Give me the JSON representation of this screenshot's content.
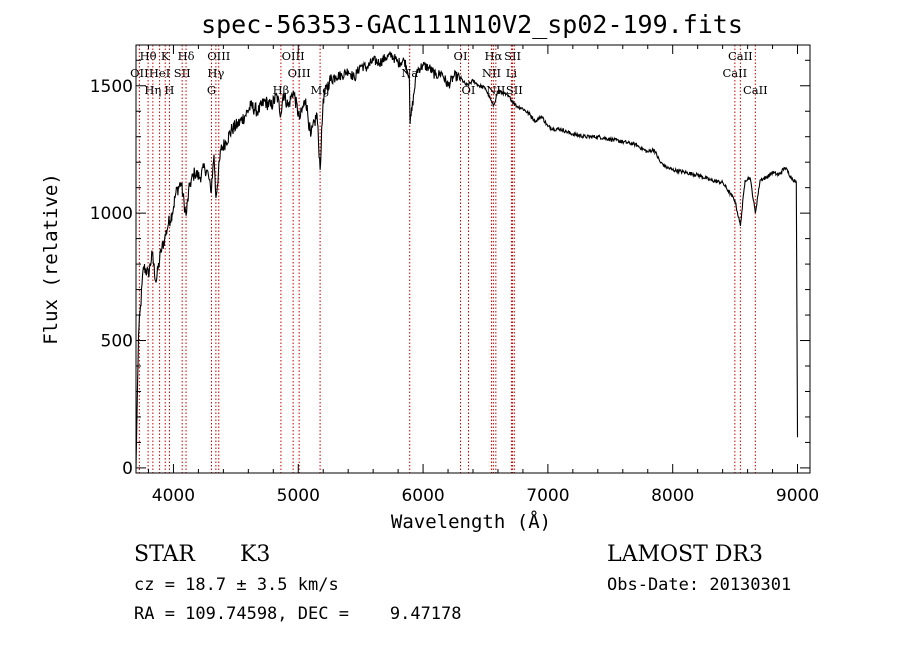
{
  "chart_data": {
    "type": "line",
    "title": "spec-56353-GAC111N10V2_sp02-199.fits",
    "xlabel": "Wavelength (Å)",
    "ylabel": "Flux (relative)",
    "xlim": [
      3700,
      9100
    ],
    "ylim": [
      -20,
      1660
    ],
    "x_ticks": [
      4000,
      5000,
      6000,
      7000,
      8000,
      9000
    ],
    "x_tick_labels": [
      "4000",
      "5000",
      "6000",
      "7000",
      "8000",
      "9000"
    ],
    "y_ticks": [
      0,
      500,
      1000,
      1500
    ],
    "y_tick_labels": [
      "0",
      "500",
      "1000",
      "1500"
    ],
    "series": [
      {
        "name": "spectrum",
        "x": [
          3700,
          3720,
          3760,
          3800,
          3830,
          3860,
          3900,
          3930,
          3960,
          3990,
          4020,
          4060,
          4101,
          4130,
          4170,
          4210,
          4250,
          4280,
          4300,
          4325,
          4340,
          4380,
          4420,
          4470,
          4520,
          4570,
          4620,
          4680,
          4730,
          4780,
          4830,
          4861,
          4880,
          4920,
          4960,
          5010,
          5060,
          5100,
          5150,
          5175,
          5200,
          5250,
          5300,
          5350,
          5400,
          5450,
          5500,
          5550,
          5600,
          5650,
          5700,
          5750,
          5800,
          5850,
          5890,
          5896,
          5950,
          6000,
          6050,
          6100,
          6150,
          6200,
          6250,
          6300,
          6350,
          6400,
          6450,
          6500,
          6563,
          6600,
          6650,
          6700,
          6750,
          6800,
          6850,
          6900,
          6950,
          7000,
          7050,
          7100,
          7150,
          7200,
          7300,
          7400,
          7500,
          7600,
          7700,
          7800,
          7850,
          7900,
          7950,
          8000,
          8100,
          8200,
          8300,
          8400,
          8498,
          8542,
          8580,
          8620,
          8662,
          8700,
          8750,
          8800,
          8850,
          8900,
          8950,
          8990,
          9000
        ],
        "values": [
          0,
          520,
          790,
          760,
          840,
          730,
          850,
          900,
          960,
          1000,
          1080,
          1120,
          990,
          1110,
          1160,
          1140,
          1180,
          1150,
          1080,
          1230,
          1060,
          1250,
          1280,
          1330,
          1350,
          1380,
          1420,
          1400,
          1440,
          1420,
          1460,
          1390,
          1470,
          1420,
          1480,
          1370,
          1450,
          1300,
          1390,
          1170,
          1450,
          1520,
          1540,
          1540,
          1560,
          1530,
          1580,
          1570,
          1600,
          1590,
          1610,
          1620,
          1590,
          1600,
          1540,
          1350,
          1560,
          1580,
          1570,
          1540,
          1550,
          1500,
          1540,
          1530,
          1500,
          1520,
          1500,
          1490,
          1420,
          1480,
          1470,
          1450,
          1420,
          1410,
          1390,
          1360,
          1380,
          1340,
          1330,
          1330,
          1320,
          1310,
          1300,
          1300,
          1290,
          1280,
          1270,
          1240,
          1250,
          1200,
          1180,
          1170,
          1160,
          1150,
          1130,
          1120,
          1050,
          950,
          1130,
          1140,
          1000,
          1130,
          1140,
          1160,
          1150,
          1180,
          1140,
          1120,
          120
        ]
      }
    ],
    "line_annotations": [
      {
        "label": "Hθ",
        "x": 3797,
        "row": 1
      },
      {
        "label": "OII",
        "x": 3727,
        "row": 2
      },
      {
        "label": "Hη",
        "x": 3835,
        "row": 3
      },
      {
        "label": "K",
        "x": 3934,
        "row": 1
      },
      {
        "label": "HeI",
        "x": 3889,
        "row": 2
      },
      {
        "label": "H",
        "x": 3968,
        "row": 3
      },
      {
        "label": "SII",
        "x": 4070,
        "row": 2
      },
      {
        "label": "Hδ",
        "x": 4101,
        "row": 1
      },
      {
        "label": "OIII",
        "x": 4363,
        "row": 1
      },
      {
        "label": "Hγ",
        "x": 4340,
        "row": 2
      },
      {
        "label": "G",
        "x": 4305,
        "row": 3
      },
      {
        "label": "Hβ",
        "x": 4861,
        "row": 3
      },
      {
        "label": "OIII",
        "x": 4959,
        "row": 1
      },
      {
        "label": "OIII",
        "x": 5007,
        "row": 2
      },
      {
        "label": "Mg",
        "x": 5175,
        "row": 3
      },
      {
        "label": "Na",
        "x": 5893,
        "row": 2
      },
      {
        "label": "OI",
        "x": 6300,
        "row": 1
      },
      {
        "label": "OI",
        "x": 6364,
        "row": 3
      },
      {
        "label": "Hα",
        "x": 6563,
        "row": 1
      },
      {
        "label": "NII",
        "x": 6548,
        "row": 2
      },
      {
        "label": "NII",
        "x": 6583,
        "row": 3
      },
      {
        "label": "SII",
        "x": 6717,
        "row": 1
      },
      {
        "label": "Li",
        "x": 6708,
        "row": 2
      },
      {
        "label": "SII",
        "x": 6731,
        "row": 3
      },
      {
        "label": "CaII",
        "x": 8542,
        "row": 1
      },
      {
        "label": "CaII",
        "x": 8498,
        "row": 2
      },
      {
        "label": "CaII",
        "x": 8662,
        "row": 3
      }
    ],
    "line_color": "#000000",
    "marker_color": "#cc0000"
  },
  "info": {
    "class_type": "STAR",
    "subclass": "K3",
    "survey": "LAMOST DR3",
    "cz": "cz = 18.7 ± 3.5 km/s",
    "obs_date": "Obs-Date: 20130301",
    "coords": "RA = 109.74598, DEC =    9.47178"
  }
}
